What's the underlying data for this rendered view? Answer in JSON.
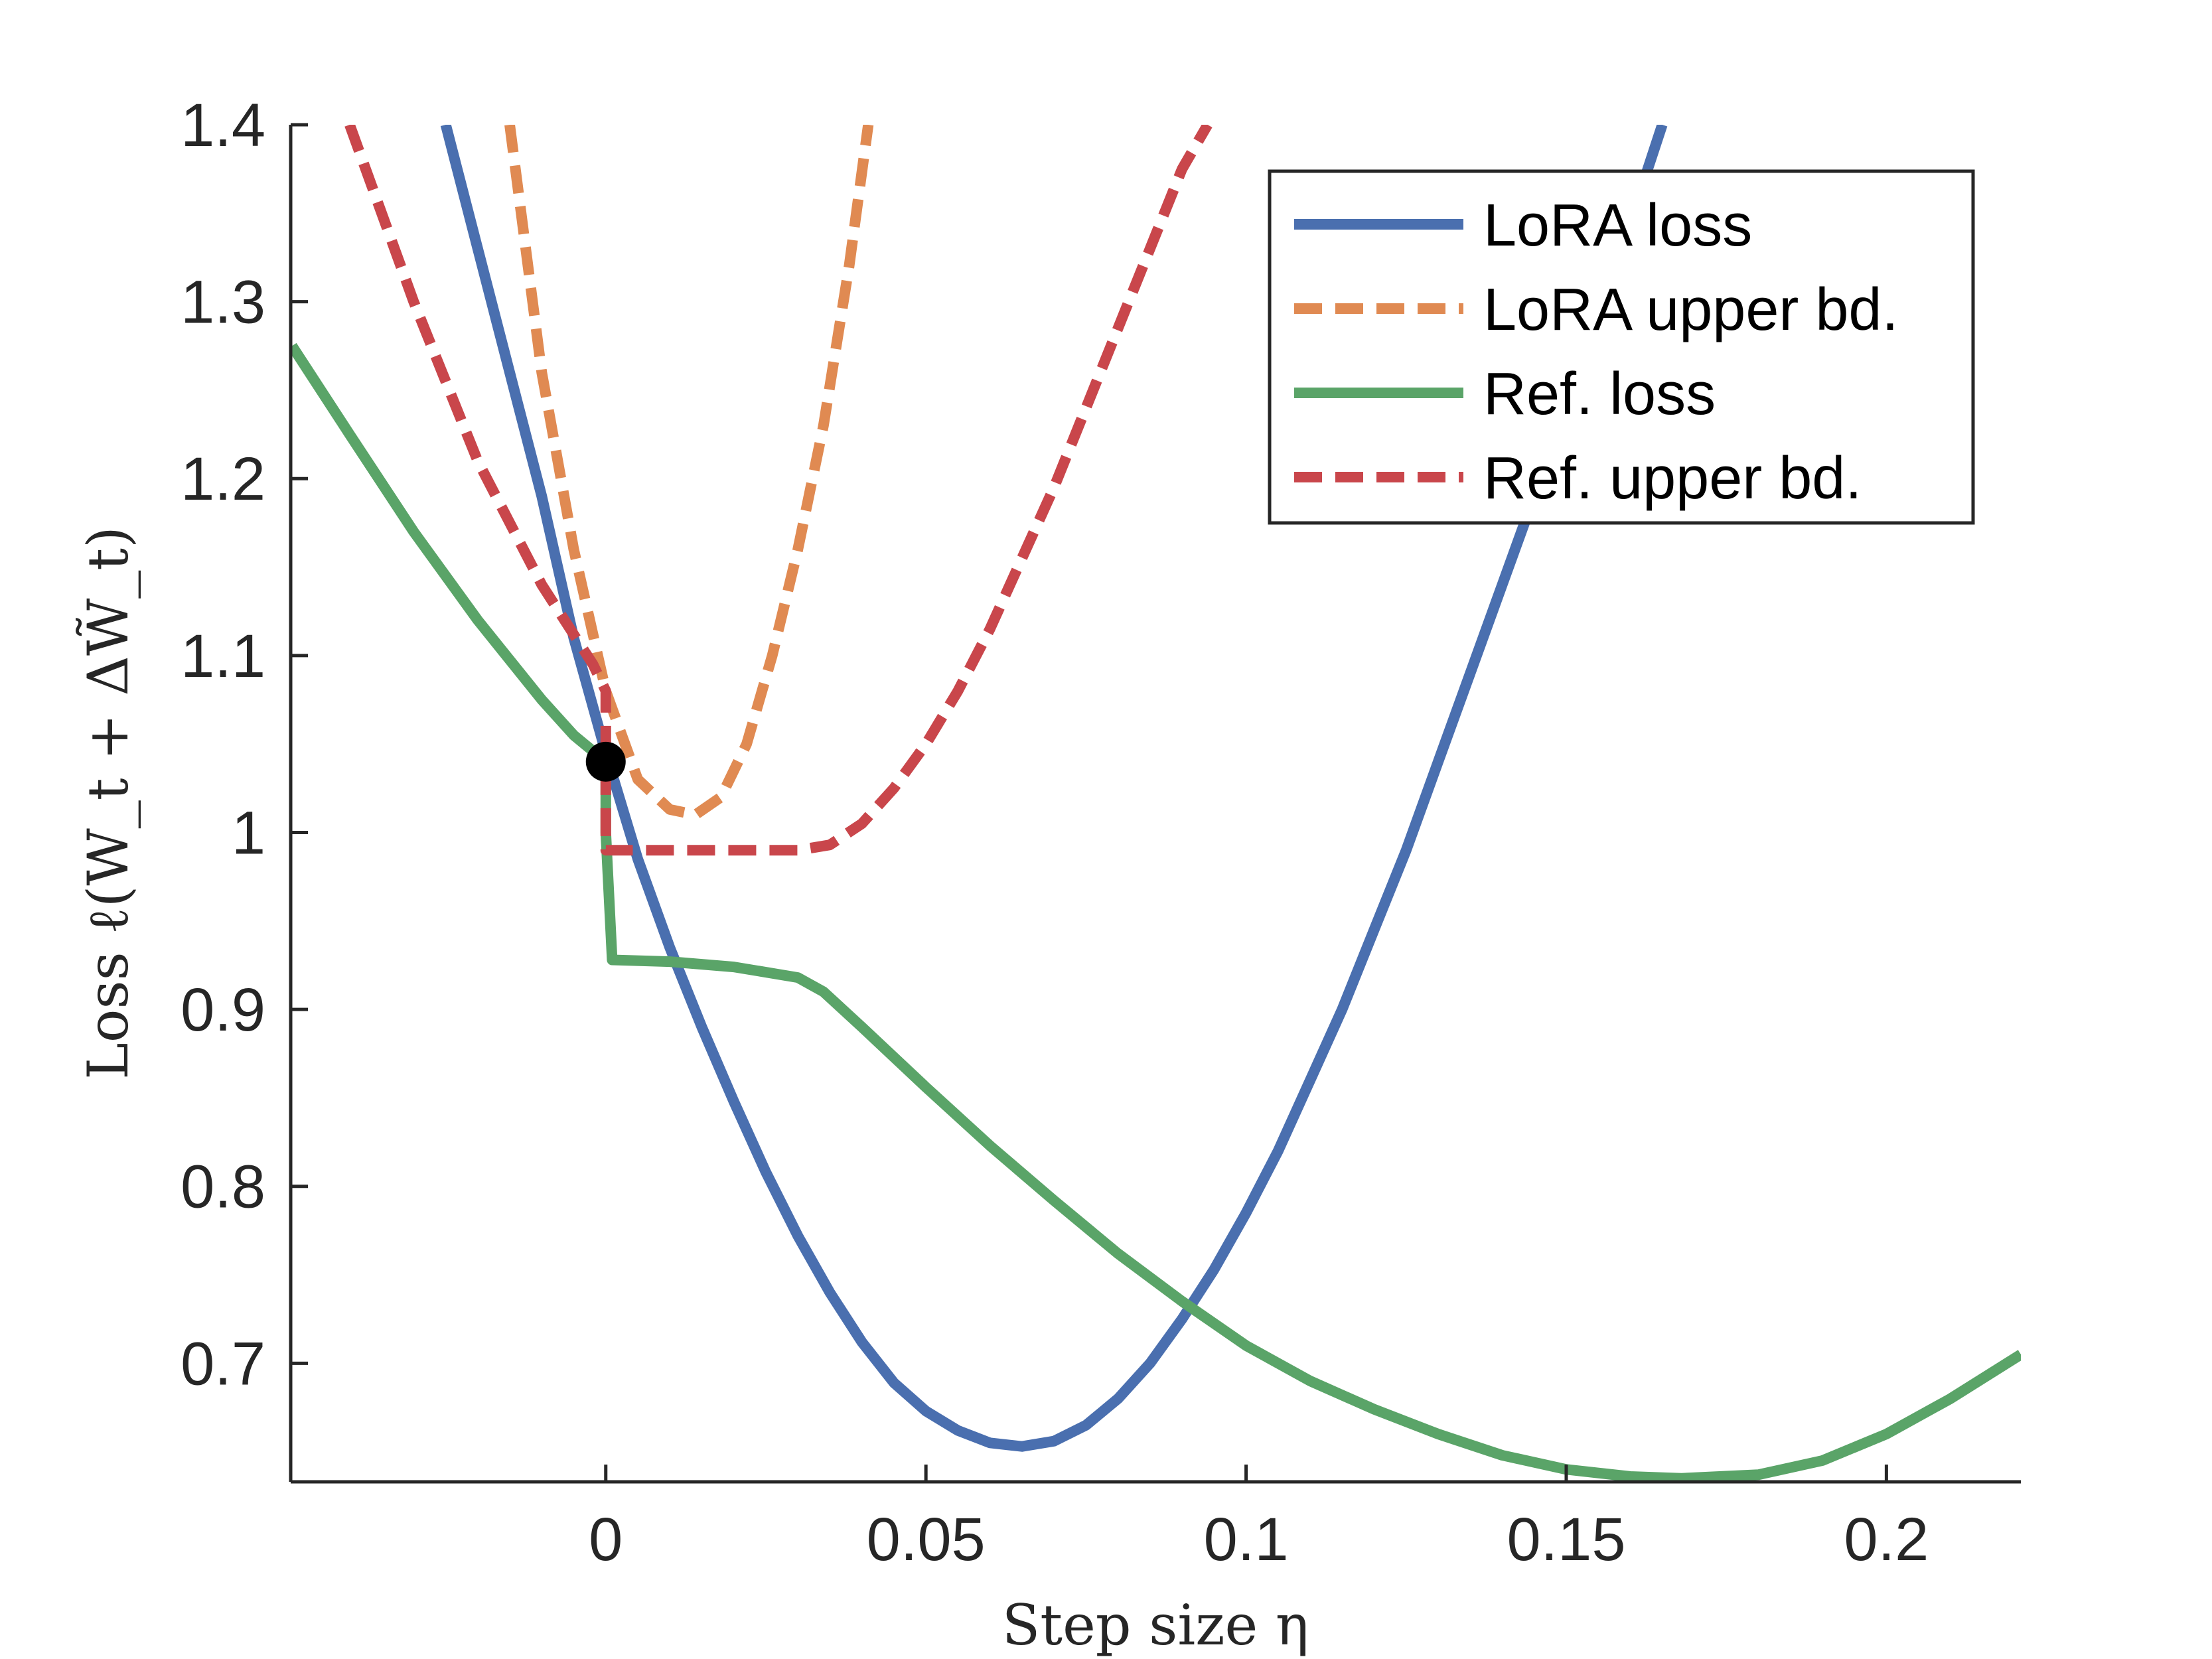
{
  "chart_data": {
    "type": "line",
    "title": "",
    "xlabel": "Step size η",
    "ylabel": "Loss ℓ(W_t + ΔW̃_t)",
    "xlim": [
      -0.049,
      0.221
    ],
    "ylim": [
      0.633,
      1.4
    ],
    "xticks": [
      0,
      0.05,
      0.1,
      0.15,
      0.2
    ],
    "xtick_labels": [
      "0",
      "0.05",
      "0.1",
      "0.15",
      "0.2"
    ],
    "yticks": [
      0.7,
      0.8,
      0.9,
      1.0,
      1.1,
      1.2,
      1.3,
      1.4
    ],
    "ytick_labels": [
      "0.7",
      "0.8",
      "0.9",
      "1",
      "1.1",
      "1.2",
      "1.3",
      "1.4"
    ],
    "grid": false,
    "legend_position": "top-right",
    "series": [
      {
        "name": "LoRA loss",
        "color": "#4a6faf",
        "dash": "solid",
        "x": [
          -0.025,
          -0.02,
          -0.015,
          -0.01,
          -0.005,
          0,
          0.005,
          0.01,
          0.015,
          0.02,
          0.025,
          0.03,
          0.035,
          0.04,
          0.045,
          0.05,
          0.055,
          0.06,
          0.065,
          0.07,
          0.075,
          0.08,
          0.085,
          0.09,
          0.095,
          0.1,
          0.105,
          0.11,
          0.115,
          0.12,
          0.125,
          0.13,
          0.135,
          0.14,
          0.145,
          0.15,
          0.155,
          0.16,
          0.165
        ],
        "y": [
          1.4,
          1.33,
          1.26,
          1.19,
          1.11,
          1.045,
          0.985,
          0.935,
          0.89,
          0.848,
          0.808,
          0.772,
          0.74,
          0.712,
          0.689,
          0.673,
          0.662,
          0.655,
          0.653,
          0.656,
          0.665,
          0.68,
          0.7,
          0.725,
          0.753,
          0.785,
          0.82,
          0.86,
          0.9,
          0.945,
          0.99,
          1.04,
          1.09,
          1.14,
          1.19,
          1.24,
          1.29,
          1.345,
          1.4
        ]
      },
      {
        "name": "LoRA upper bd.",
        "color": "#e08a52",
        "dash": "dashed",
        "x": [
          -0.015,
          -0.01,
          -0.005,
          0,
          0.005,
          0.01,
          0.014,
          0.018,
          0.022,
          0.026,
          0.03,
          0.034,
          0.038,
          0.041
        ],
        "y": [
          1.4,
          1.26,
          1.16,
          1.08,
          1.03,
          1.013,
          1.01,
          1.02,
          1.05,
          1.1,
          1.16,
          1.23,
          1.32,
          1.4
        ]
      },
      {
        "name": "Ref. loss",
        "color": "#5aa468",
        "dash": "solid",
        "x": [
          -0.049,
          -0.04,
          -0.03,
          -0.02,
          -0.01,
          -0.005,
          0,
          0,
          0.001,
          0.01,
          0.02,
          0.03,
          0.034,
          0.04,
          0.05,
          0.06,
          0.07,
          0.08,
          0.09,
          0.1,
          0.11,
          0.12,
          0.13,
          0.14,
          0.15,
          0.16,
          0.168,
          0.18,
          0.19,
          0.2,
          0.21,
          0.221
        ],
        "y": [
          1.275,
          1.225,
          1.17,
          1.12,
          1.075,
          1.055,
          1.04,
          1.0,
          0.928,
          0.927,
          0.924,
          0.918,
          0.91,
          0.89,
          0.856,
          0.823,
          0.792,
          0.762,
          0.735,
          0.71,
          0.69,
          0.674,
          0.66,
          0.648,
          0.64,
          0.636,
          0.635,
          0.637,
          0.645,
          0.66,
          0.68,
          0.705
        ]
      },
      {
        "name": "Ref. upper bd.",
        "color": "#c9464b",
        "dash": "dashed",
        "x": [
          -0.04,
          -0.03,
          -0.02,
          -0.01,
          -0.002,
          0,
          0,
          0.001,
          0.01,
          0.02,
          0.03,
          0.035,
          0.04,
          0.045,
          0.05,
          0.055,
          0.06,
          0.065,
          0.07,
          0.075,
          0.08,
          0.085,
          0.09,
          0.094
        ],
        "y": [
          1.4,
          1.3,
          1.21,
          1.14,
          1.095,
          1.08,
          0.99,
          0.99,
          0.99,
          0.99,
          0.99,
          0.993,
          1.005,
          1.025,
          1.05,
          1.08,
          1.115,
          1.155,
          1.195,
          1.24,
          1.285,
          1.33,
          1.375,
          1.4
        ]
      }
    ],
    "marker": {
      "x": 0,
      "y": 1.04,
      "color": "#000000"
    }
  }
}
